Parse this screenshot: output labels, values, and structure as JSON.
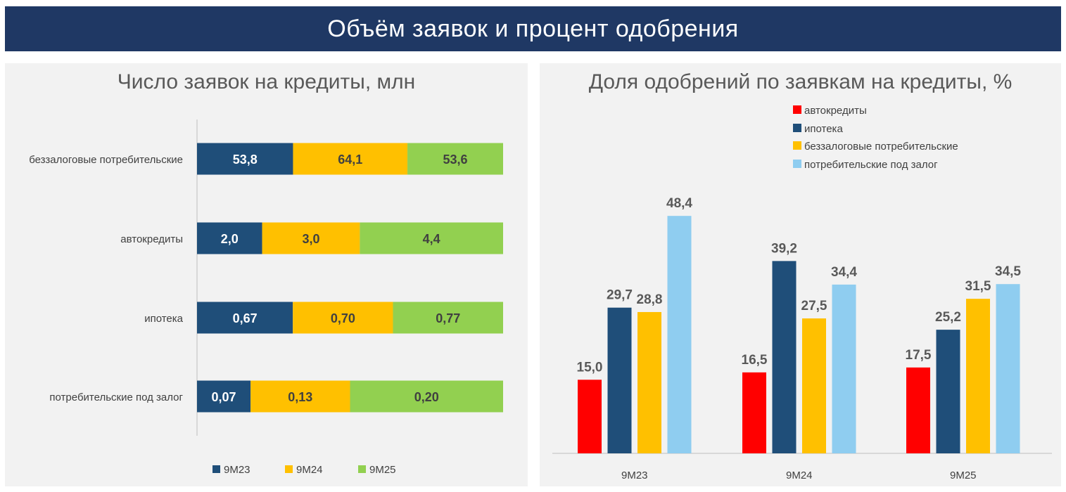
{
  "header": {
    "title": "Объём заявок и процент одобрения"
  },
  "colors": {
    "header_bg": "#1f3864",
    "9M23": "#1f4e79",
    "9M24": "#ffc000",
    "9M25": "#92d050",
    "auto": "#ff0000",
    "mortgage": "#1f4e79",
    "unsecured": "#ffc000",
    "secured": "#8fcdf0"
  },
  "chart_data": [
    {
      "type": "bar",
      "orientation": "horizontal",
      "stacking": "percent",
      "title": "Число заявок на кредиты, млн",
      "categories": [
        "беззалоговые потребительские",
        "автокредиты",
        "ипотека",
        "потребительские под залог"
      ],
      "series": [
        {
          "name": "9M23",
          "values": [
            53.8,
            2.0,
            0.67,
            0.07
          ],
          "labels": [
            "53,8",
            "2,0",
            "0,67",
            "0,07"
          ]
        },
        {
          "name": "9M24",
          "values": [
            64.1,
            3.0,
            0.7,
            0.13
          ],
          "labels": [
            "64,1",
            "3,0",
            "0,70",
            "0,13"
          ]
        },
        {
          "name": "9M25",
          "values": [
            53.6,
            4.4,
            0.77,
            0.2
          ],
          "labels": [
            "53,6",
            "4,4",
            "0,77",
            "0,20"
          ]
        }
      ],
      "legend": "bottom"
    },
    {
      "type": "bar",
      "orientation": "vertical",
      "title": "Доля одобрений по заявкам на кредиты, %",
      "categories": [
        "9M23",
        "9M24",
        "9M25"
      ],
      "series": [
        {
          "name": "автокредиты",
          "values": [
            15.0,
            16.5,
            17.5
          ],
          "labels": [
            "15,0",
            "16,5",
            "17,5"
          ]
        },
        {
          "name": "ипотека",
          "values": [
            29.7,
            39.2,
            25.2
          ],
          "labels": [
            "29,7",
            "39,2",
            "25,2"
          ]
        },
        {
          "name": "беззалоговые потребительские",
          "values": [
            28.8,
            27.5,
            31.5
          ],
          "labels": [
            "28,8",
            "27,5",
            "31,5"
          ]
        },
        {
          "name": "потребительские под залог",
          "values": [
            48.4,
            34.4,
            34.5
          ],
          "labels": [
            "48,4",
            "34,4",
            "34,5"
          ]
        }
      ],
      "ylim": [
        0,
        50
      ],
      "legend": "top-right"
    }
  ]
}
